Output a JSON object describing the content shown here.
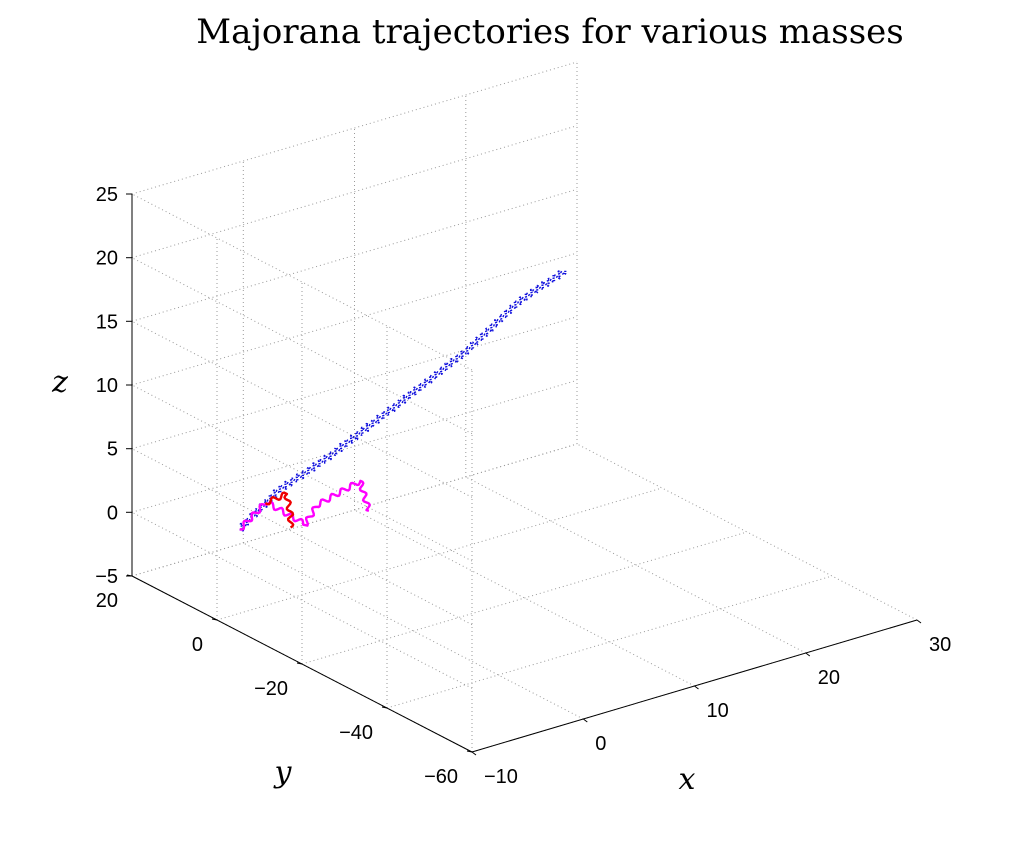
{
  "chart_data": {
    "type": "line3d",
    "title": "Majorana trajectories for various masses",
    "xlabel": "x",
    "ylabel": "y",
    "zlabel": "z",
    "xlim": [
      -10,
      30
    ],
    "ylim": [
      -60,
      20
    ],
    "zlim": [
      -5,
      25
    ],
    "xticks": [
      -10,
      0,
      10,
      20,
      30
    ],
    "yticks": [
      -60,
      -40,
      -20,
      0,
      20
    ],
    "zticks": [
      -5,
      0,
      5,
      10,
      15,
      20,
      25
    ],
    "xtick_labels": [
      "−10",
      "0",
      "10",
      "20",
      "30"
    ],
    "ytick_labels": [
      "−60",
      "−40",
      "−20",
      "0",
      "20"
    ],
    "ztick_labels": [
      "−5",
      "0",
      "5",
      "10",
      "15",
      "20",
      "25"
    ],
    "grid": true,
    "series": [
      {
        "color": "#1010dd",
        "style": "dotted",
        "points": [
          [
            -6.7,
            3.3,
            0.7
          ],
          [
            -4.4,
            0.0,
            3.8
          ],
          [
            -3.3,
            -2.0,
            4.9
          ],
          [
            -2.1,
            -4.8,
            6.4
          ],
          [
            2.0,
            -11.0,
            10.7
          ],
          [
            3.8,
            -13.0,
            12.3
          ],
          [
            6.4,
            -16.0,
            14.7
          ],
          [
            9.8,
            -19.2,
            18.2
          ],
          [
            12.9,
            -22.0,
            20.3
          ]
        ]
      },
      {
        "color": "#ff00ff",
        "style": "solid",
        "points": [
          [
            -6.7,
            3.3,
            0.7
          ],
          [
            -5.0,
            1.5,
            2.7
          ],
          [
            -3.1,
            -2.7,
            1.2
          ],
          [
            -2.4,
            -3.7,
            2.7
          ],
          [
            0.3,
            -6.7,
            4.4
          ],
          [
            0.6,
            -8.0,
            2.2
          ]
        ]
      },
      {
        "color": "#ee0000",
        "style": "solid",
        "points": [
          [
            -5.0,
            1.7,
            2.6
          ],
          [
            -3.8,
            -0.1,
            3.3
          ],
          [
            -4.0,
            -1.6,
            2.0
          ],
          [
            -4.3,
            -2.4,
            1.2
          ]
        ]
      }
    ]
  }
}
